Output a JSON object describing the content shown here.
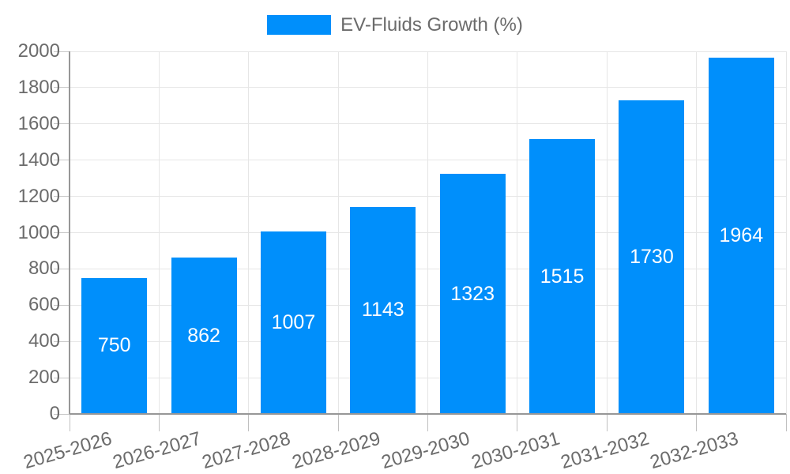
{
  "legend": {
    "position": "top",
    "items": [
      {
        "label": "EV-Fluids Growth (%)",
        "color": "#008FFB"
      }
    ]
  },
  "chart_data": {
    "type": "bar",
    "title": "",
    "xlabel": "",
    "ylabel": "",
    "categories": [
      "2025-2026",
      "2026-2027",
      "2027-2028",
      "2028-2029",
      "2029-2030",
      "2030-2031",
      "2031-2032",
      "2032-2033"
    ],
    "series": [
      {
        "name": "EV-Fluids Growth (%)",
        "color": "#008FFB",
        "values": [
          750,
          862,
          1007,
          1143,
          1323,
          1515,
          1730,
          1964
        ]
      }
    ],
    "data_labels": {
      "enabled": true,
      "color": "#FFFFFF",
      "position": "center"
    },
    "y_axis": {
      "min": 0,
      "max": 2000,
      "tick_step": 200,
      "ticks": [
        0,
        200,
        400,
        600,
        800,
        1000,
        1200,
        1400,
        1600,
        1800,
        2000
      ]
    },
    "grid": {
      "horizontal": true,
      "vertical": true
    },
    "legend_position": "top"
  }
}
